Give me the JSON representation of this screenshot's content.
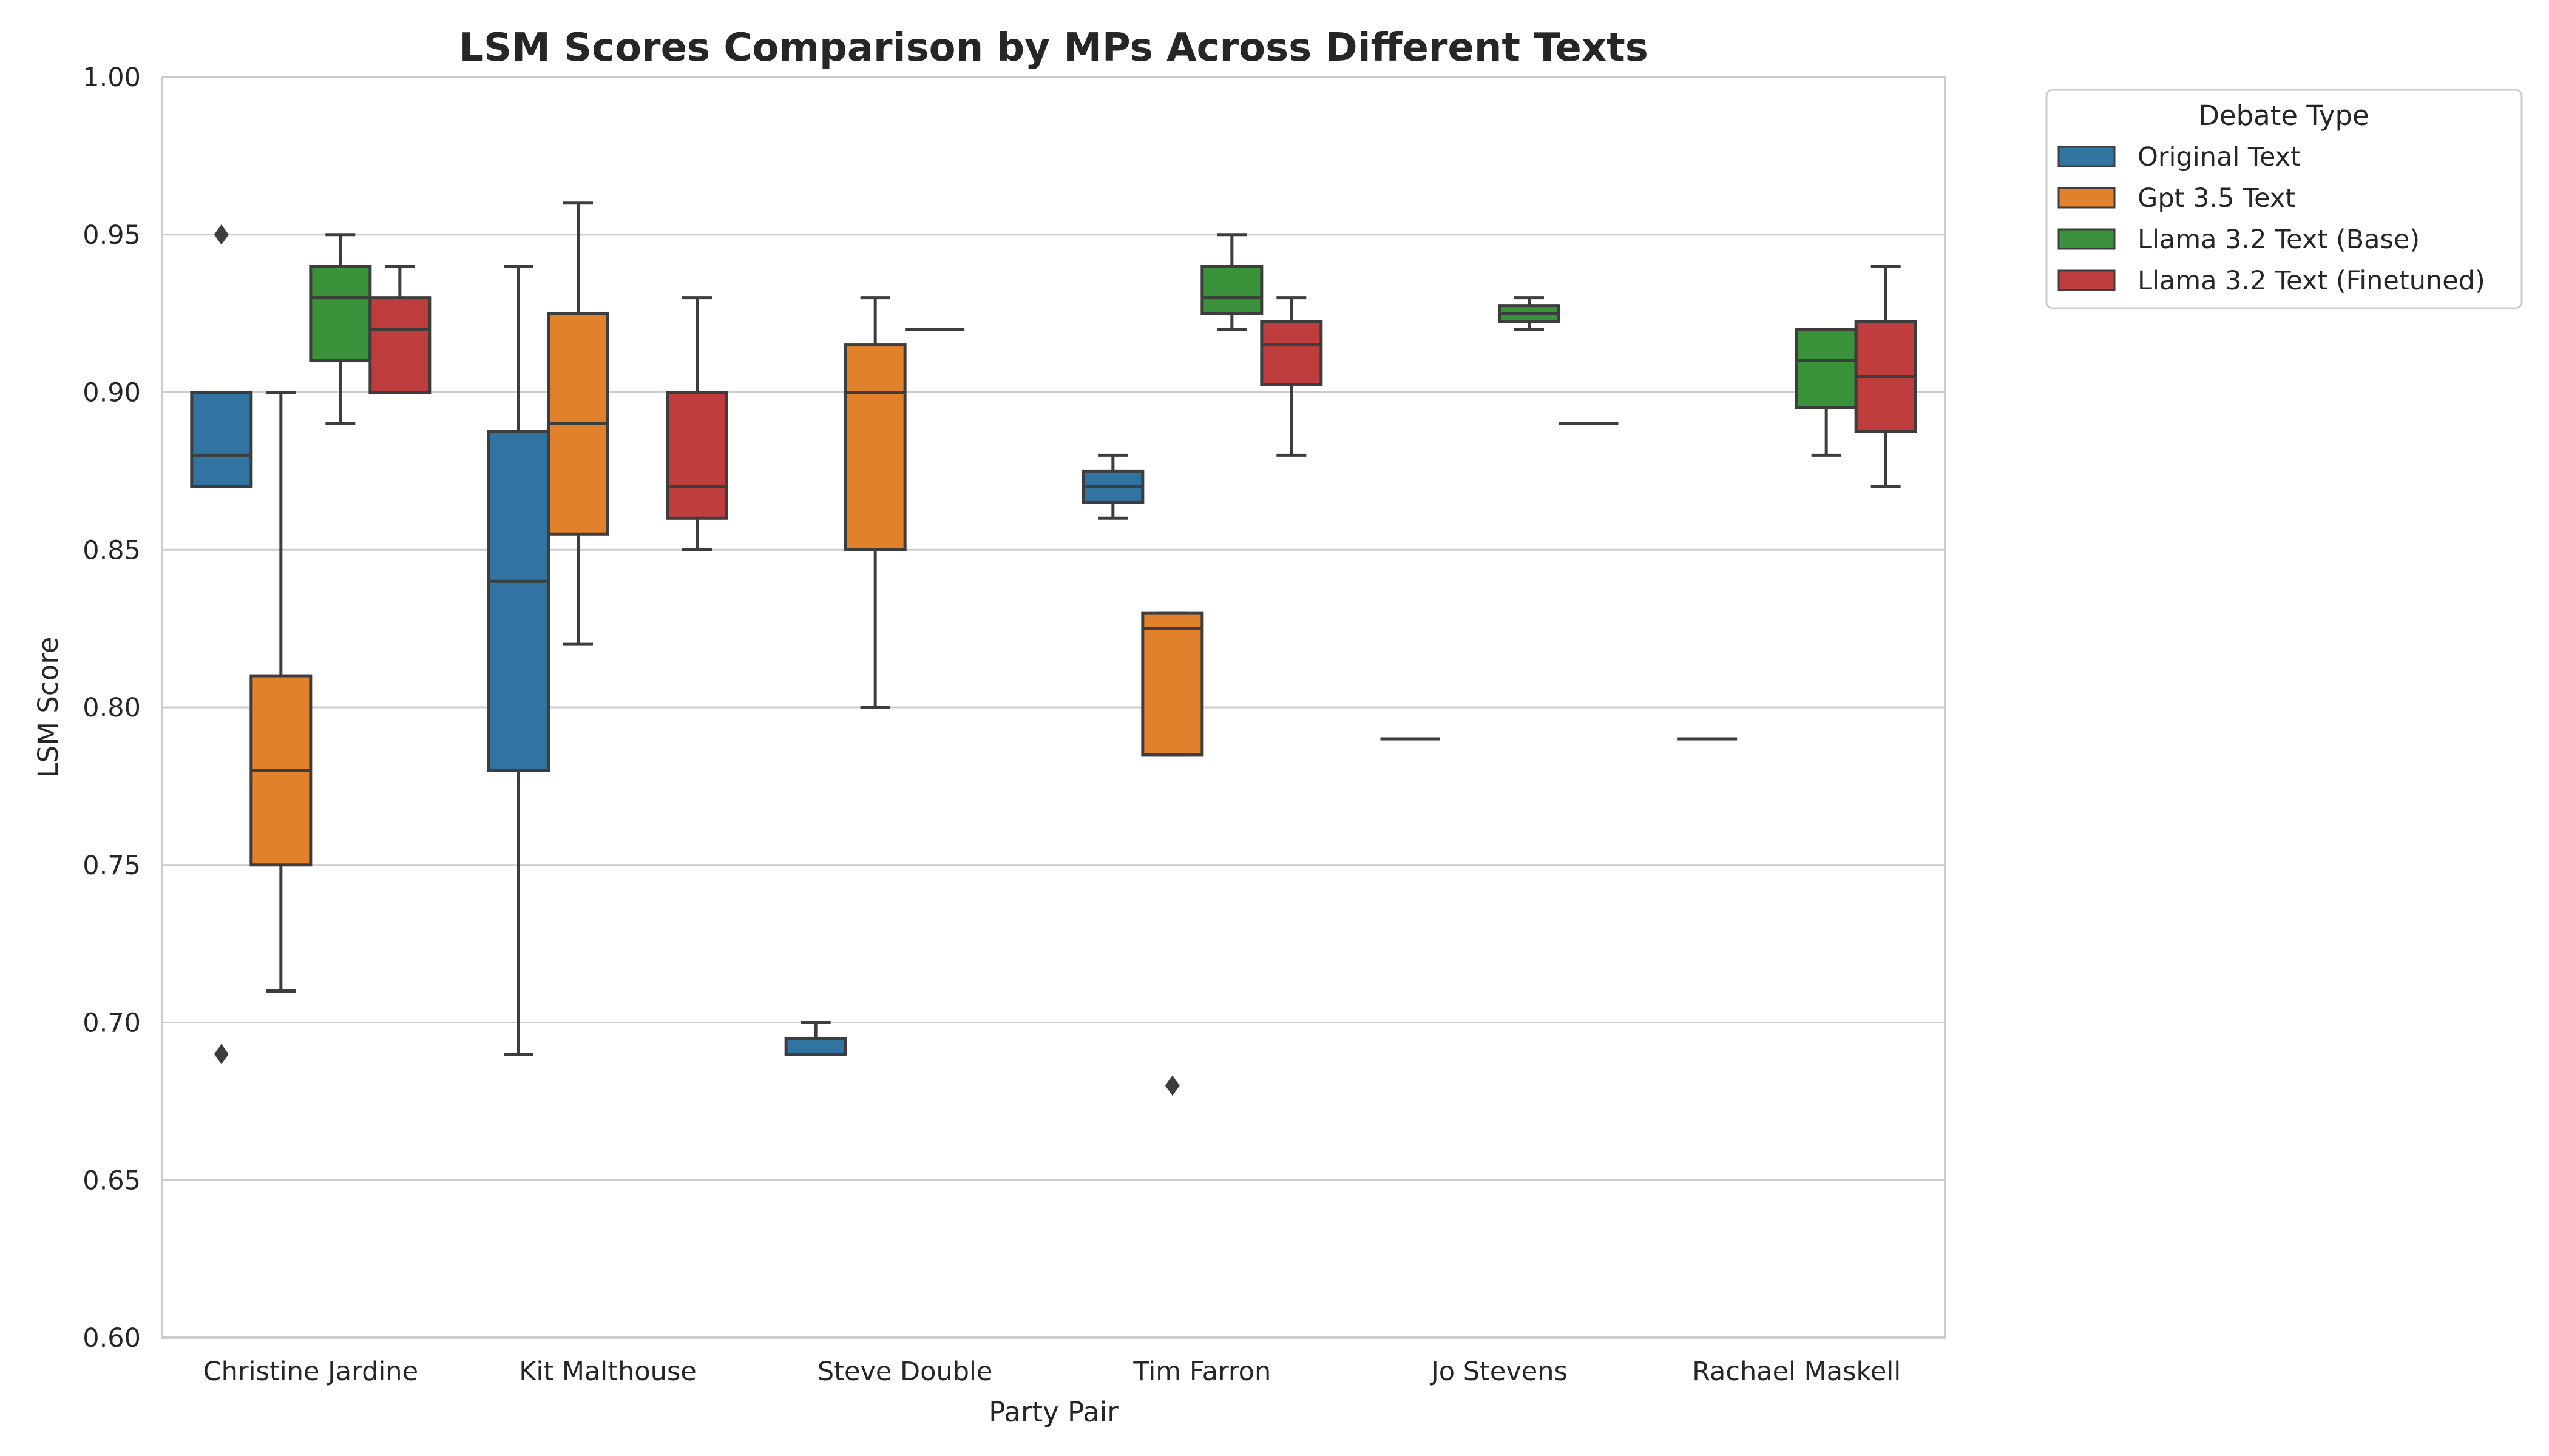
{
  "chart_data": {
    "type": "box",
    "title": "LSM Scores Comparison by MPs Across Different Texts",
    "xlabel": "Party Pair",
    "ylabel": "LSM Score",
    "ylim": [
      0.6,
      1.0
    ],
    "yticks": [
      "0.60",
      "0.65",
      "0.70",
      "0.75",
      "0.80",
      "0.85",
      "0.90",
      "0.95",
      "1.00"
    ],
    "grid": "horizontal",
    "legend": {
      "title": "Debate Type",
      "placement": "outside-top-right",
      "entries": [
        "Original Text",
        "Gpt 3.5 Text",
        "Llama 3.2 Text (Base)",
        "Llama 3.2 Text (Finetuned)"
      ]
    },
    "colors": [
      "#3274a1",
      "#e1812c",
      "#3a923a",
      "#c03d3e"
    ],
    "categories": [
      "Christine Jardine",
      "Kit Malthouse",
      "Steve Double",
      "Tim Farron",
      "Jo Stevens",
      "Rachael Maskell"
    ],
    "series": [
      {
        "name": "Original Text",
        "boxes": [
          {
            "whislo": 0.87,
            "q1": 0.87,
            "med": 0.88,
            "q3": 0.9,
            "whishi": 0.9,
            "fliers": [
              0.95,
              0.69
            ]
          },
          {
            "whislo": 0.69,
            "q1": 0.78,
            "med": 0.84,
            "q3": 0.8875,
            "whishi": 0.94,
            "fliers": []
          },
          {
            "whislo": 0.69,
            "q1": 0.69,
            "med": 0.69,
            "q3": 0.695,
            "whishi": 0.7,
            "fliers": []
          },
          {
            "whislo": 0.86,
            "q1": 0.865,
            "med": 0.87,
            "q3": 0.875,
            "whishi": 0.88,
            "fliers": []
          },
          {
            "whislo": 0.79,
            "q1": 0.79,
            "med": 0.79,
            "q3": 0.79,
            "whishi": 0.79,
            "fliers": []
          },
          {
            "whislo": 0.79,
            "q1": 0.79,
            "med": 0.79,
            "q3": 0.79,
            "whishi": 0.79,
            "fliers": []
          }
        ]
      },
      {
        "name": "Gpt 3.5 Text",
        "boxes": [
          {
            "whislo": 0.71,
            "q1": 0.75,
            "med": 0.78,
            "q3": 0.81,
            "whishi": 0.9,
            "fliers": []
          },
          {
            "whislo": 0.82,
            "q1": 0.855,
            "med": 0.89,
            "q3": 0.925,
            "whishi": 0.96,
            "fliers": []
          },
          {
            "whislo": 0.8,
            "q1": 0.85,
            "med": 0.9,
            "q3": 0.915,
            "whishi": 0.93,
            "fliers": []
          },
          {
            "whislo": 0.785,
            "q1": 0.785,
            "med": 0.825,
            "q3": 0.83,
            "whishi": 0.83,
            "fliers": [
              0.68
            ]
          },
          null,
          null
        ]
      },
      {
        "name": "Llama 3.2 Text (Base)",
        "boxes": [
          {
            "whislo": 0.89,
            "q1": 0.91,
            "med": 0.93,
            "q3": 0.94,
            "whishi": 0.95,
            "fliers": []
          },
          null,
          {
            "whislo": 0.92,
            "q1": 0.92,
            "med": 0.92,
            "q3": 0.92,
            "whishi": 0.92,
            "fliers": []
          },
          {
            "whislo": 0.92,
            "q1": 0.925,
            "med": 0.93,
            "q3": 0.94,
            "whishi": 0.95,
            "fliers": []
          },
          {
            "whislo": 0.92,
            "q1": 0.9225,
            "med": 0.925,
            "q3": 0.9275,
            "whishi": 0.93,
            "fliers": []
          },
          {
            "whislo": 0.88,
            "q1": 0.895,
            "med": 0.91,
            "q3": 0.92,
            "whishi": 0.92,
            "fliers": []
          }
        ]
      },
      {
        "name": "Llama 3.2 Text (Finetuned)",
        "boxes": [
          {
            "whislo": 0.9,
            "q1": 0.9,
            "med": 0.92,
            "q3": 0.93,
            "whishi": 0.94,
            "fliers": []
          },
          {
            "whislo": 0.85,
            "q1": 0.86,
            "med": 0.87,
            "q3": 0.9,
            "whishi": 0.93,
            "fliers": []
          },
          null,
          {
            "whislo": 0.88,
            "q1": 0.9025,
            "med": 0.915,
            "q3": 0.9225,
            "whishi": 0.93,
            "fliers": []
          },
          {
            "whislo": 0.89,
            "q1": 0.89,
            "med": 0.89,
            "q3": 0.89,
            "whishi": 0.89,
            "fliers": []
          },
          {
            "whislo": 0.87,
            "q1": 0.8875,
            "med": 0.905,
            "q3": 0.9225,
            "whishi": 0.94,
            "fliers": []
          }
        ]
      }
    ]
  }
}
